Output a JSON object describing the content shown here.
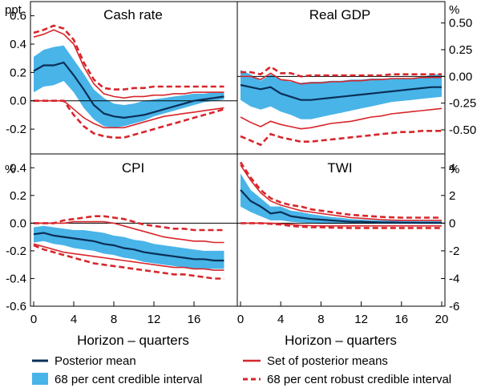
{
  "figure": {
    "xlabel": "Horizon – quarters",
    "colors": {
      "median": "#0b2f57",
      "credible": "#49b4e8",
      "posterior_set": "#d7262b",
      "robust": "#d7262b",
      "frame": "#000000"
    },
    "legend": {
      "posterior_mean": "Posterior mean",
      "credible_interval": "68 per cent credible interval",
      "set_of_posterior_means": "Set of posterior means",
      "robust_interval": "68 per cent robust credible interval"
    }
  },
  "chart_data": [
    {
      "type": "line",
      "title": "Cash rate",
      "unit": "ppt",
      "unit_side": "left",
      "x": [
        0,
        1,
        2,
        3,
        4,
        5,
        6,
        7,
        8,
        9,
        10,
        11,
        12,
        13,
        14,
        15,
        16,
        17,
        18,
        19
      ],
      "ylim": [
        -0.375,
        0.7
      ],
      "yticks": [
        -0.2,
        0.0,
        0.2,
        0.4,
        0.6
      ],
      "yticklabels": [
        "-0.2",
        "0.0",
        "0.2",
        "0.4",
        "0.6"
      ],
      "tick_side": "left",
      "xticks": [],
      "xticklabels": [],
      "posterior_mean": [
        0.21,
        0.25,
        0.25,
        0.27,
        0.18,
        0.08,
        -0.03,
        -0.09,
        -0.11,
        -0.12,
        -0.11,
        -0.1,
        -0.08,
        -0.06,
        -0.04,
        -0.02,
        0.0,
        0.01,
        0.02,
        0.03
      ],
      "credible_lower": [
        0.06,
        0.1,
        0.11,
        0.14,
        0.06,
        -0.05,
        -0.13,
        -0.18,
        -0.19,
        -0.18,
        -0.16,
        -0.14,
        -0.11,
        -0.09,
        -0.07,
        -0.05,
        -0.03,
        -0.01,
        0.0,
        0.01
      ],
      "credible_upper": [
        0.31,
        0.36,
        0.38,
        0.39,
        0.29,
        0.19,
        0.08,
        0.02,
        -0.02,
        -0.03,
        -0.02,
        0.0,
        0.01,
        0.02,
        0.03,
        0.04,
        0.05,
        0.05,
        0.06,
        0.06
      ],
      "set_upper": [
        0.45,
        0.47,
        0.5,
        0.47,
        0.4,
        0.24,
        0.12,
        0.05,
        0.03,
        0.02,
        0.03,
        0.03,
        0.04,
        0.04,
        0.05,
        0.05,
        0.06,
        0.06,
        0.06,
        0.06
      ],
      "set_lower": [
        0.0,
        0.0,
        0.0,
        0.0,
        -0.06,
        -0.12,
        -0.16,
        -0.19,
        -0.19,
        -0.19,
        -0.17,
        -0.15,
        -0.13,
        -0.11,
        -0.1,
        -0.09,
        -0.08,
        -0.07,
        -0.06,
        -0.05
      ],
      "robust_upper": [
        0.48,
        0.5,
        0.53,
        0.51,
        0.43,
        0.27,
        0.15,
        0.09,
        0.08,
        0.08,
        0.09,
        0.09,
        0.1,
        0.1,
        0.1,
        0.1,
        0.1,
        0.1,
        0.1,
        0.1
      ],
      "robust_lower": [
        0.0,
        0.0,
        0.0,
        0.0,
        -0.1,
        -0.18,
        -0.23,
        -0.25,
        -0.26,
        -0.26,
        -0.24,
        -0.22,
        -0.2,
        -0.18,
        -0.16,
        -0.14,
        -0.12,
        -0.1,
        -0.08,
        -0.06
      ]
    },
    {
      "type": "line",
      "title": "Real GDP",
      "unit": "%",
      "unit_side": "right",
      "x": [
        0,
        1,
        2,
        3,
        4,
        5,
        6,
        7,
        8,
        9,
        10,
        11,
        12,
        13,
        14,
        15,
        16,
        17,
        18,
        19,
        20
      ],
      "ylim": [
        -0.725,
        0.7
      ],
      "yticks": [
        -0.5,
        -0.25,
        0.0,
        0.25,
        0.5
      ],
      "yticklabels": [
        "-0.50",
        "-0.25",
        "0.00",
        "0.25",
        "0.50"
      ],
      "tick_side": "right",
      "xticks": [],
      "xticklabels": [],
      "posterior_mean": [
        -0.08,
        -0.1,
        -0.12,
        -0.1,
        -0.16,
        -0.19,
        -0.22,
        -0.22,
        -0.21,
        -0.2,
        -0.19,
        -0.18,
        -0.17,
        -0.16,
        -0.15,
        -0.14,
        -0.13,
        -0.12,
        -0.11,
        -0.1,
        -0.1
      ],
      "credible_lower": [
        -0.22,
        -0.28,
        -0.31,
        -0.28,
        -0.33,
        -0.36,
        -0.4,
        -0.4,
        -0.38,
        -0.36,
        -0.34,
        -0.32,
        -0.3,
        -0.28,
        -0.26,
        -0.24,
        -0.23,
        -0.22,
        -0.21,
        -0.2,
        -0.19
      ],
      "credible_upper": [
        0.06,
        0.02,
        -0.04,
        0.02,
        -0.03,
        -0.05,
        -0.06,
        -0.05,
        -0.05,
        -0.04,
        -0.04,
        -0.03,
        -0.03,
        -0.02,
        -0.02,
        -0.02,
        -0.02,
        -0.02,
        -0.01,
        0.02,
        0.02
      ],
      "set_upper": [
        0.0,
        0.0,
        -0.03,
        0.03,
        -0.03,
        -0.04,
        -0.07,
        -0.06,
        -0.06,
        -0.05,
        -0.05,
        -0.04,
        -0.04,
        -0.03,
        -0.03,
        -0.02,
        -0.02,
        -0.02,
        -0.01,
        -0.01,
        -0.01
      ],
      "set_lower": [
        -0.38,
        -0.43,
        -0.47,
        -0.42,
        -0.45,
        -0.47,
        -0.49,
        -0.48,
        -0.46,
        -0.44,
        -0.43,
        -0.42,
        -0.4,
        -0.38,
        -0.37,
        -0.35,
        -0.34,
        -0.33,
        -0.32,
        -0.31,
        -0.3
      ],
      "robust_upper": [
        0.04,
        0.04,
        0.02,
        0.09,
        0.03,
        0.03,
        0.0,
        0.01,
        0.01,
        0.01,
        0.01,
        0.01,
        0.01,
        0.01,
        0.01,
        0.02,
        0.02,
        0.02,
        0.02,
        0.02,
        0.02
      ],
      "robust_lower": [
        -0.56,
        -0.6,
        -0.64,
        -0.54,
        -0.57,
        -0.59,
        -0.61,
        -0.61,
        -0.6,
        -0.59,
        -0.58,
        -0.57,
        -0.56,
        -0.55,
        -0.54,
        -0.53,
        -0.52,
        -0.52,
        -0.51,
        -0.51,
        -0.51
      ]
    },
    {
      "type": "line",
      "title": "CPI",
      "unit": "%",
      "unit_side": "left",
      "x": [
        0,
        1,
        2,
        3,
        4,
        5,
        6,
        7,
        8,
        9,
        10,
        11,
        12,
        13,
        14,
        15,
        16,
        17,
        18,
        19
      ],
      "ylim": [
        -0.6,
        0.5
      ],
      "yticks": [
        -0.6,
        -0.4,
        -0.2,
        0.0,
        0.2,
        0.4
      ],
      "yticklabels": [
        "-0.6",
        "-0.4",
        "-0.2",
        "0.0",
        "0.2",
        "0.4"
      ],
      "tick_side": "left",
      "xticks": [
        0,
        4,
        8,
        12,
        16
      ],
      "xticklabels": [
        "0",
        "4",
        "8",
        "12",
        "16"
      ],
      "posterior_mean": [
        -0.08,
        -0.07,
        -0.09,
        -0.1,
        -0.11,
        -0.12,
        -0.13,
        -0.15,
        -0.16,
        -0.18,
        -0.19,
        -0.21,
        -0.22,
        -0.23,
        -0.24,
        -0.25,
        -0.26,
        -0.26,
        -0.27,
        -0.27
      ],
      "credible_lower": [
        -0.14,
        -0.13,
        -0.15,
        -0.16,
        -0.18,
        -0.19,
        -0.2,
        -0.22,
        -0.23,
        -0.25,
        -0.26,
        -0.28,
        -0.29,
        -0.3,
        -0.31,
        -0.32,
        -0.33,
        -0.33,
        -0.33,
        -0.33
      ],
      "credible_upper": [
        -0.03,
        -0.02,
        -0.03,
        -0.04,
        -0.05,
        -0.05,
        -0.06,
        -0.07,
        -0.09,
        -0.1,
        -0.12,
        -0.13,
        -0.15,
        -0.16,
        -0.17,
        -0.18,
        -0.19,
        -0.2,
        -0.2,
        -0.2
      ],
      "set_upper": [
        0.0,
        0.0,
        0.0,
        0.0,
        0.01,
        0.01,
        0.01,
        0.01,
        0.0,
        -0.02,
        -0.04,
        -0.06,
        -0.08,
        -0.1,
        -0.11,
        -0.12,
        -0.13,
        -0.13,
        -0.14,
        -0.14
      ],
      "set_lower": [
        -0.15,
        -0.17,
        -0.19,
        -0.21,
        -0.22,
        -0.23,
        -0.24,
        -0.25,
        -0.26,
        -0.27,
        -0.28,
        -0.29,
        -0.3,
        -0.31,
        -0.32,
        -0.32,
        -0.33,
        -0.33,
        -0.34,
        -0.34
      ],
      "robust_upper": [
        0.0,
        0.0,
        0.0,
        0.02,
        0.03,
        0.04,
        0.05,
        0.05,
        0.04,
        0.03,
        0.01,
        -0.01,
        -0.02,
        -0.03,
        -0.04,
        -0.04,
        -0.05,
        -0.05,
        -0.05,
        -0.05
      ],
      "robust_lower": [
        -0.16,
        -0.19,
        -0.21,
        -0.23,
        -0.25,
        -0.27,
        -0.29,
        -0.3,
        -0.31,
        -0.32,
        -0.33,
        -0.34,
        -0.35,
        -0.36,
        -0.37,
        -0.37,
        -0.38,
        -0.39,
        -0.4,
        -0.4
      ]
    },
    {
      "type": "line",
      "title": "TWI",
      "unit": "%",
      "unit_side": "right",
      "x": [
        0,
        1,
        2,
        3,
        4,
        5,
        6,
        7,
        8,
        9,
        10,
        11,
        12,
        13,
        14,
        15,
        16,
        17,
        18,
        19,
        20
      ],
      "ylim": [
        -6,
        5
      ],
      "yticks": [
        -6,
        -4,
        -2,
        0,
        2,
        4
      ],
      "yticklabels": [
        "-6",
        "-4",
        "-2",
        "0",
        "2",
        "4"
      ],
      "tick_side": "right",
      "xticks": [
        0,
        4,
        8,
        12,
        16,
        20
      ],
      "xticklabels": [
        "0",
        "4",
        "8",
        "12",
        "16",
        "20"
      ],
      "posterior_mean": [
        2.4,
        1.6,
        1.2,
        0.7,
        0.8,
        0.5,
        0.4,
        0.3,
        0.25,
        0.2,
        0.15,
        0.1,
        0.1,
        0.08,
        0.05,
        0.05,
        0.03,
        0.03,
        0.02,
        0.02,
        0.02
      ],
      "credible_lower": [
        1.2,
        0.8,
        0.5,
        0.2,
        0.2,
        0.1,
        0.05,
        0.0,
        -0.05,
        -0.05,
        -0.05,
        -0.05,
        -0.05,
        -0.05,
        -0.05,
        -0.05,
        -0.05,
        -0.05,
        -0.05,
        -0.05,
        -0.05
      ],
      "credible_upper": [
        3.6,
        2.4,
        1.8,
        1.2,
        1.2,
        0.9,
        0.8,
        0.65,
        0.55,
        0.45,
        0.38,
        0.3,
        0.25,
        0.22,
        0.2,
        0.18,
        0.16,
        0.15,
        0.14,
        0.14,
        0.14
      ],
      "set_upper": [
        4.2,
        3.1,
        2.2,
        1.6,
        1.3,
        1.1,
        0.9,
        0.8,
        0.7,
        0.6,
        0.5,
        0.4,
        0.35,
        0.3,
        0.25,
        0.22,
        0.2,
        0.2,
        0.2,
        0.2,
        0.2
      ],
      "set_lower": [
        0.0,
        0.0,
        0.0,
        0.0,
        -0.05,
        -0.1,
        -0.15,
        -0.18,
        -0.2,
        -0.2,
        -0.2,
        -0.2,
        -0.2,
        -0.2,
        -0.2,
        -0.2,
        -0.2,
        -0.2,
        -0.2,
        -0.2,
        -0.2
      ],
      "robust_upper": [
        4.4,
        3.3,
        2.4,
        1.8,
        1.5,
        1.3,
        1.2,
        1.0,
        0.9,
        0.8,
        0.7,
        0.6,
        0.55,
        0.5,
        0.45,
        0.42,
        0.4,
        0.4,
        0.4,
        0.4,
        0.4
      ],
      "robust_lower": [
        0.0,
        0.0,
        0.0,
        -0.05,
        -0.1,
        -0.2,
        -0.25,
        -0.3,
        -0.3,
        -0.32,
        -0.34,
        -0.35,
        -0.35,
        -0.35,
        -0.35,
        -0.35,
        -0.35,
        -0.35,
        -0.35,
        -0.35,
        -0.35
      ]
    }
  ]
}
